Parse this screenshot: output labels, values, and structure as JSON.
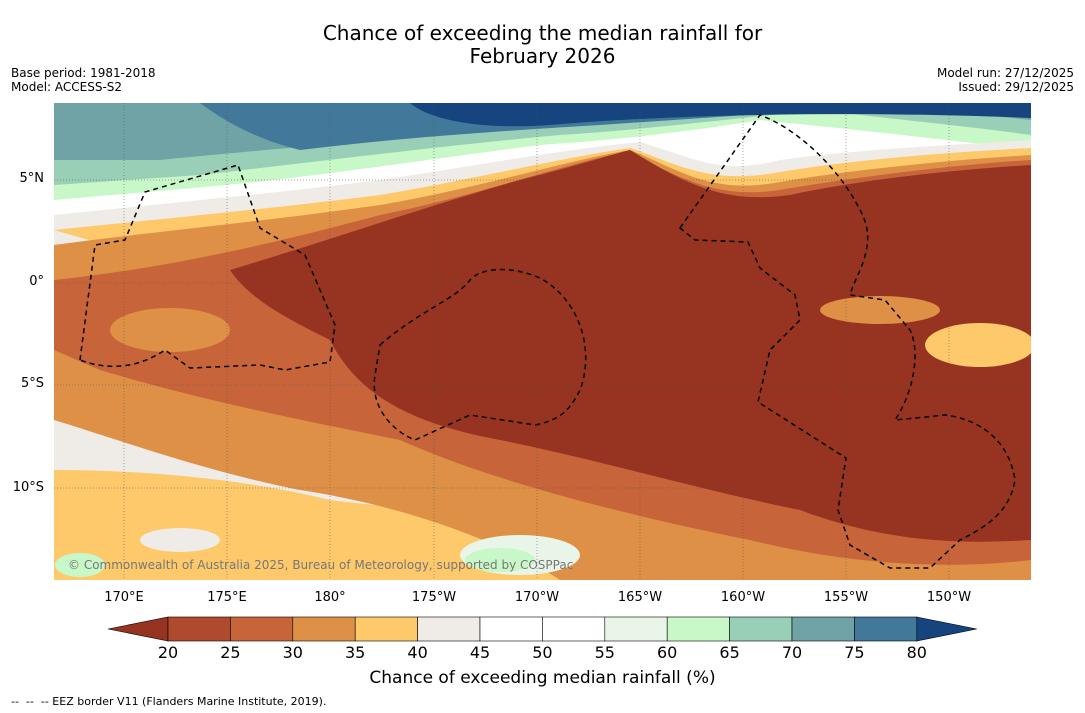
{
  "title": {
    "line1": "Chance of exceeding the median rainfall for",
    "line2": "February 2026"
  },
  "meta": {
    "base_period": "Base period: 1981-2018",
    "model": "Model: ACCESS-S2",
    "model_run": "Model run: 27/12/2025",
    "issued": "Issued: 29/12/2025"
  },
  "copyright": "© Commonwealth of Australia 2025, Bureau of Meteorology, supported by COSPPac",
  "lat_labels": [
    "5°N",
    "0°",
    "5°S",
    "10°S"
  ],
  "lon_labels": [
    "170°E",
    "175°E",
    "180°",
    "175°W",
    "170°W",
    "165°W",
    "160°W",
    "155°W",
    "150°W"
  ],
  "colorbar": {
    "ticks": [
      "20",
      "25",
      "30",
      "35",
      "40",
      "45",
      "50",
      "55",
      "60",
      "65",
      "70",
      "75",
      "80"
    ],
    "colors": [
      "#973321",
      "#b04a2c",
      "#c8643a",
      "#de9046",
      "#fdc96b",
      "#efebe6",
      "#ffffff",
      "#ffffff",
      "#e8f5e8",
      "#c8f7c8",
      "#99cfb6",
      "#6fa3a5",
      "#42799a",
      "#16447e"
    ],
    "label": "Chance of exceeding median rainfall (%)"
  },
  "footnote": "--  --  -- EEZ border V11 (Flanders Marine Institute, 2019)."
}
